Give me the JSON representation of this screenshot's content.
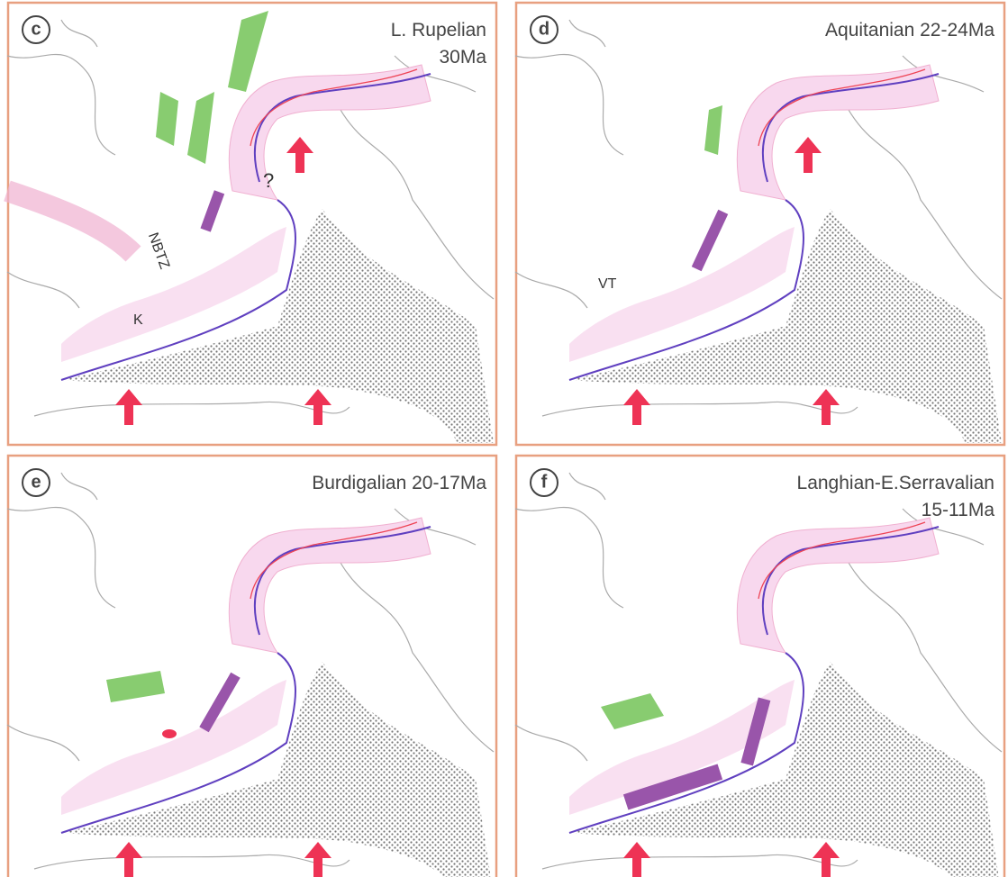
{
  "panels": [
    {
      "letter": "c",
      "title": [
        "L. Rupelian",
        "30Ma"
      ],
      "labels": [
        "NBTZ",
        "K",
        "?"
      ]
    },
    {
      "letter": "d",
      "title": [
        "Aquitanian 22-24Ma"
      ],
      "labels": [
        "VT"
      ]
    },
    {
      "letter": "e",
      "title": [
        "Burdigalian 20-17Ma"
      ]
    },
    {
      "letter": "f",
      "title": [
        "Langhian-E.Serravalian",
        "15-11Ma"
      ]
    }
  ]
}
